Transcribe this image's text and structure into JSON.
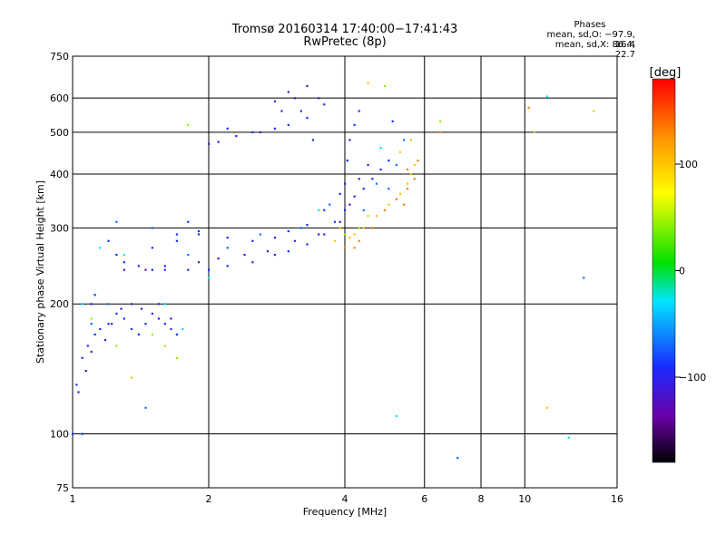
{
  "header": {
    "title_line1": "Tromsø 20160314 17:40:00−17:41:43",
    "title_line2": "RwPretec (8p)"
  },
  "phase_box": {
    "title": "Phases",
    "line_o": "mean, sd,O: −97.9, 16.4",
    "line_x": "mean, sd,X:  86.4, 22.7"
  },
  "chart_data": {
    "type": "scatter",
    "xlabel": "Frequency [MHz]",
    "ylabel": "Stationary phase Virtual Height [km]",
    "xscale": "log",
    "yscale": "log",
    "xlim": [
      1,
      16
    ],
    "ylim": [
      75,
      750
    ],
    "x_ticks": [
      {
        "value": 1,
        "label": "1"
      },
      {
        "value": 2,
        "label": "2"
      },
      {
        "value": 4,
        "label": "4"
      },
      {
        "value": 6,
        "label": "6"
      },
      {
        "value": 8,
        "label": "8"
      },
      {
        "value": 10,
        "label": "10"
      },
      {
        "value": 16,
        "label": "16"
      }
    ],
    "y_ticks": [
      {
        "value": 75,
        "label": "75"
      },
      {
        "value": 100,
        "label": "100"
      },
      {
        "value": 200,
        "label": "200"
      },
      {
        "value": 300,
        "label": "300"
      },
      {
        "value": 400,
        "label": "400"
      },
      {
        "value": 500,
        "label": "500"
      },
      {
        "value": 600,
        "label": "600"
      },
      {
        "value": 750,
        "label": "750"
      }
    ],
    "grid": true,
    "colorbar": {
      "label": "[deg]",
      "range": [
        -180,
        180
      ],
      "ticks": [
        {
          "value": 100,
          "label": "100"
        },
        {
          "value": 0,
          "label": "0"
        },
        {
          "value": -100,
          "label": "−100"
        }
      ]
    },
    "traces": [
      {
        "phase_deg": -100,
        "points": [
          [
            1.0,
            100
          ],
          [
            1.05,
            100
          ],
          [
            1.02,
            130
          ],
          [
            1.05,
            150
          ],
          [
            1.08,
            160
          ],
          [
            1.12,
            170
          ],
          [
            1.15,
            175
          ],
          [
            1.2,
            180
          ],
          [
            1.25,
            190
          ],
          [
            1.3,
            185
          ],
          [
            1.35,
            175
          ],
          [
            1.4,
            170
          ],
          [
            1.45,
            180
          ],
          [
            1.5,
            190
          ],
          [
            1.55,
            185
          ],
          [
            1.6,
            180
          ],
          [
            1.65,
            175
          ],
          [
            1.7,
            170
          ],
          [
            1.1,
            200
          ],
          [
            1.12,
            210
          ],
          [
            1.2,
            280
          ],
          [
            1.25,
            260
          ],
          [
            1.3,
            250
          ],
          [
            1.4,
            245
          ],
          [
            1.5,
            240
          ],
          [
            1.6,
            240
          ],
          [
            1.8,
            240
          ],
          [
            2.0,
            240
          ],
          [
            2.2,
            245
          ],
          [
            2.5,
            250
          ],
          [
            2.8,
            260
          ],
          [
            3.0,
            265
          ],
          [
            3.3,
            275
          ],
          [
            3.6,
            290
          ],
          [
            3.8,
            310
          ],
          [
            4.0,
            330
          ],
          [
            4.2,
            355
          ],
          [
            4.4,
            370
          ],
          [
            4.6,
            390
          ],
          [
            4.8,
            410
          ],
          [
            5.0,
            430
          ],
          [
            1.5,
            270
          ],
          [
            1.7,
            280
          ],
          [
            1.9,
            290
          ],
          [
            2.2,
            285
          ],
          [
            2.5,
            280
          ],
          [
            2.8,
            285
          ],
          [
            3.0,
            295
          ],
          [
            3.3,
            305
          ],
          [
            3.6,
            330
          ],
          [
            3.9,
            360
          ],
          [
            4.0,
            380
          ],
          [
            4.05,
            430
          ],
          [
            4.1,
            480
          ],
          [
            4.2,
            520
          ],
          [
            4.3,
            560
          ],
          [
            1.8,
            310
          ],
          [
            1.9,
            295
          ],
          [
            1.7,
            290
          ],
          [
            2.2,
            510
          ],
          [
            2.5,
            500
          ],
          [
            2.8,
            510
          ],
          [
            3.0,
            520
          ],
          [
            3.3,
            540
          ],
          [
            3.6,
            580
          ],
          [
            2.8,
            590
          ],
          [
            3.2,
            560
          ],
          [
            3.4,
            480
          ],
          [
            5.1,
            530
          ]
        ]
      },
      {
        "phase_deg": -120,
        "points": [
          [
            1.03,
            125
          ],
          [
            1.07,
            140
          ],
          [
            1.1,
            155
          ],
          [
            1.18,
            165
          ],
          [
            1.22,
            180
          ],
          [
            1.28,
            195
          ],
          [
            1.35,
            200
          ],
          [
            1.42,
            195
          ],
          [
            1.55,
            200
          ],
          [
            1.65,
            185
          ],
          [
            1.3,
            240
          ],
          [
            1.45,
            240
          ],
          [
            1.6,
            245
          ],
          [
            1.9,
            250
          ],
          [
            2.1,
            255
          ],
          [
            2.4,
            260
          ],
          [
            2.7,
            265
          ],
          [
            3.1,
            280
          ],
          [
            3.5,
            290
          ],
          [
            3.9,
            310
          ],
          [
            4.1,
            340
          ],
          [
            4.3,
            390
          ],
          [
            4.5,
            420
          ],
          [
            2.0,
            470
          ],
          [
            2.1,
            475
          ],
          [
            2.3,
            490
          ],
          [
            2.6,
            500
          ],
          [
            2.9,
            560
          ],
          [
            3.1,
            600
          ],
          [
            3.0,
            620
          ],
          [
            3.3,
            640
          ],
          [
            3.5,
            600
          ]
        ]
      },
      {
        "phase_deg": -75,
        "points": [
          [
            1.1,
            180
          ],
          [
            1.2,
            200
          ],
          [
            1.25,
            310
          ],
          [
            1.5,
            300
          ],
          [
            1.8,
            260
          ],
          [
            2.2,
            270
          ],
          [
            2.6,
            290
          ],
          [
            3.2,
            300
          ],
          [
            3.7,
            340
          ],
          [
            4.4,
            330
          ],
          [
            4.7,
            380
          ],
          [
            5.0,
            370
          ],
          [
            5.2,
            420
          ],
          [
            5.4,
            480
          ],
          [
            1.45,
            115
          ],
          [
            7.1,
            88
          ],
          [
            13.5,
            230
          ]
        ]
      },
      {
        "phase_deg": -30,
        "points": [
          [
            1.05,
            200
          ],
          [
            1.15,
            270
          ],
          [
            1.3,
            260
          ],
          [
            1.6,
            200
          ],
          [
            1.75,
            175
          ],
          [
            2.0,
            230
          ],
          [
            3.5,
            330
          ],
          [
            4.8,
            460
          ],
          [
            5.2,
            110
          ],
          [
            12.5,
            98
          ],
          [
            11.2,
            605
          ]
        ]
      },
      {
        "phase_deg": 40,
        "points": [
          [
            1.1,
            185
          ],
          [
            1.25,
            160
          ],
          [
            1.5,
            170
          ],
          [
            1.7,
            150
          ],
          [
            1.8,
            520
          ],
          [
            4.0,
            290
          ],
          [
            4.3,
            300
          ],
          [
            4.5,
            320
          ],
          [
            4.9,
            640
          ],
          [
            6.5,
            530
          ]
        ]
      },
      {
        "phase_deg": 100,
        "points": [
          [
            3.8,
            280
          ],
          [
            4.1,
            285
          ],
          [
            4.4,
            300
          ],
          [
            4.7,
            320
          ],
          [
            5.0,
            340
          ],
          [
            5.3,
            360
          ],
          [
            5.5,
            380
          ],
          [
            5.6,
            400
          ],
          [
            5.7,
            420
          ],
          [
            5.3,
            450
          ],
          [
            5.6,
            480
          ],
          [
            4.5,
            650
          ],
          [
            1.35,
            135
          ],
          [
            1.6,
            160
          ],
          [
            11.2,
            115
          ],
          [
            14.2,
            560
          ],
          [
            10.5,
            500
          ],
          [
            3.9,
            300
          ],
          [
            4.2,
            290
          ]
        ]
      },
      {
        "phase_deg": 130,
        "points": [
          [
            4.0,
            270
          ],
          [
            4.3,
            280
          ],
          [
            4.6,
            300
          ],
          [
            4.9,
            330
          ],
          [
            5.2,
            350
          ],
          [
            5.5,
            370
          ],
          [
            5.7,
            390
          ],
          [
            5.8,
            430
          ],
          [
            5.5,
            410
          ],
          [
            5.4,
            340
          ],
          [
            10.2,
            570
          ],
          [
            6.5,
            500
          ],
          [
            4.2,
            270
          ]
        ]
      }
    ]
  }
}
